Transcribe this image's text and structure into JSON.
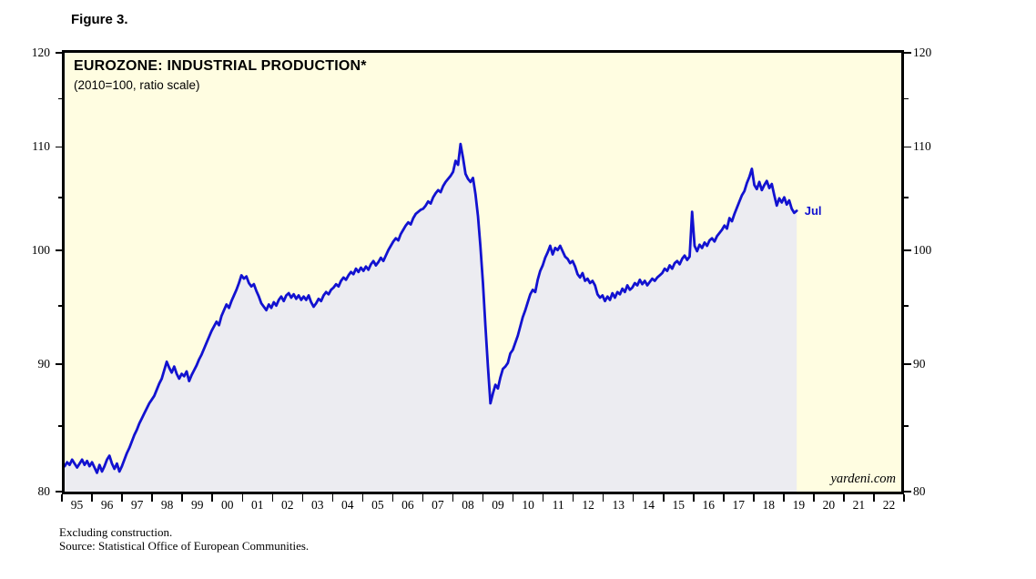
{
  "figure": {
    "label": "Figure 3."
  },
  "chart": {
    "title": "EUROZONE: INDUSTRIAL PRODUCTION*",
    "subtitle": "(2010=100, ratio scale)",
    "watermark": "yardeni.com",
    "end_label": "Jul",
    "colors": {
      "plot_background": "#FFFDE1",
      "area_fill": "#ECECF1",
      "line": "#1212D0",
      "frame": "#000000"
    }
  },
  "footnotes": [
    "Excluding construction.",
    "Source: Statistical Office of European Communities."
  ],
  "chart_data": {
    "type": "line",
    "title": "EUROZONE: INDUSTRIAL PRODUCTION*",
    "subtitle": "(2010=100, ratio scale)",
    "y_scale": "log",
    "ylim": [
      80,
      120
    ],
    "y_major_ticks": [
      80,
      90,
      100,
      110,
      120
    ],
    "y_minor_ticks": [
      85,
      95,
      105,
      115
    ],
    "xlim_years": [
      1995,
      2023
    ],
    "x_tick_years": [
      "95",
      "96",
      "97",
      "98",
      "99",
      "00",
      "01",
      "02",
      "03",
      "04",
      "05",
      "06",
      "07",
      "08",
      "09",
      "10",
      "11",
      "12",
      "13",
      "14",
      "15",
      "16",
      "17",
      "18",
      "19",
      "20",
      "21",
      "22"
    ],
    "grid": "off",
    "legend": "none",
    "annotations": [
      {
        "text": "Jul",
        "x_year": 2019.58,
        "y_value": 103.7
      }
    ],
    "series": [
      {
        "name": "Eurozone Industrial Production (2010=100)",
        "frequency": "monthly",
        "start_year": 1995,
        "start_month": 1,
        "end_label": "Jul 2019",
        "values": [
          81.9,
          82.2,
          82.0,
          82.4,
          82.1,
          81.8,
          82.1,
          82.4,
          82.0,
          82.3,
          81.9,
          82.2,
          81.8,
          81.4,
          82.0,
          81.5,
          81.9,
          82.4,
          82.7,
          82.1,
          81.7,
          82.1,
          81.5,
          81.9,
          82.4,
          82.9,
          83.3,
          83.8,
          84.3,
          84.7,
          85.2,
          85.6,
          86.0,
          86.4,
          86.8,
          87.1,
          87.4,
          87.9,
          88.4,
          88.8,
          89.5,
          90.2,
          89.7,
          89.3,
          89.8,
          89.2,
          88.8,
          89.2,
          89.0,
          89.4,
          88.6,
          89.1,
          89.5,
          89.9,
          90.4,
          90.8,
          91.3,
          91.8,
          92.3,
          92.8,
          93.2,
          93.6,
          93.3,
          94.1,
          94.6,
          95.1,
          94.8,
          95.4,
          95.9,
          96.4,
          97.0,
          97.7,
          97.4,
          97.6,
          97.0,
          96.7,
          96.9,
          96.3,
          95.8,
          95.2,
          94.9,
          94.6,
          95.1,
          94.8,
          95.3,
          95.0,
          95.5,
          95.8,
          95.4,
          95.9,
          96.1,
          95.7,
          96.0,
          95.6,
          95.9,
          95.5,
          95.8,
          95.5,
          95.9,
          95.3,
          94.9,
          95.2,
          95.6,
          95.4,
          95.9,
          96.2,
          96.0,
          96.4,
          96.6,
          96.9,
          96.7,
          97.2,
          97.5,
          97.3,
          97.7,
          98.0,
          97.8,
          98.3,
          98.0,
          98.4,
          98.1,
          98.5,
          98.2,
          98.7,
          99.0,
          98.6,
          98.9,
          99.3,
          99.0,
          99.5,
          100.0,
          100.4,
          100.8,
          101.1,
          100.9,
          101.5,
          101.9,
          102.3,
          102.6,
          102.4,
          103.0,
          103.4,
          103.6,
          103.8,
          103.9,
          104.2,
          104.6,
          104.4,
          105.0,
          105.4,
          105.7,
          105.5,
          106.1,
          106.5,
          106.8,
          107.1,
          107.5,
          108.6,
          108.2,
          110.3,
          108.9,
          107.3,
          106.8,
          106.5,
          106.9,
          105.3,
          103.2,
          100.3,
          97.0,
          93.2,
          89.8,
          86.8,
          87.6,
          88.3,
          88.0,
          88.9,
          89.6,
          89.8,
          90.1,
          90.9,
          91.2,
          91.8,
          92.4,
          93.2,
          94.0,
          94.6,
          95.3,
          96.0,
          96.4,
          96.2,
          97.3,
          98.1,
          98.6,
          99.3,
          99.8,
          100.4,
          99.6,
          100.2,
          100.0,
          100.4,
          99.9,
          99.4,
          99.2,
          98.8,
          99.0,
          98.5,
          97.8,
          97.5,
          97.9,
          97.2,
          97.4,
          97.0,
          97.2,
          96.8,
          96.0,
          95.7,
          95.9,
          95.4,
          95.8,
          95.5,
          96.1,
          95.7,
          96.2,
          96.0,
          96.5,
          96.2,
          96.8,
          96.4,
          96.6,
          97.0,
          96.8,
          97.3,
          96.9,
          97.2,
          96.8,
          97.1,
          97.4,
          97.2,
          97.5,
          97.7,
          97.9,
          98.3,
          98.1,
          98.6,
          98.3,
          98.8,
          99.0,
          98.7,
          99.2,
          99.5,
          99.1,
          99.4,
          103.6,
          100.4,
          99.9,
          100.5,
          100.2,
          100.7,
          100.4,
          100.9,
          101.1,
          100.8,
          101.3,
          101.6,
          101.9,
          102.3,
          102.0,
          103.0,
          102.7,
          103.4,
          104.0,
          104.6,
          105.2,
          105.6,
          106.4,
          107.0,
          107.8,
          106.2,
          105.8,
          106.5,
          105.7,
          106.2,
          106.6,
          105.9,
          106.3,
          105.2,
          104.2,
          104.9,
          104.5,
          105.0,
          104.3,
          104.7,
          103.9,
          103.5,
          103.7
        ]
      }
    ]
  }
}
